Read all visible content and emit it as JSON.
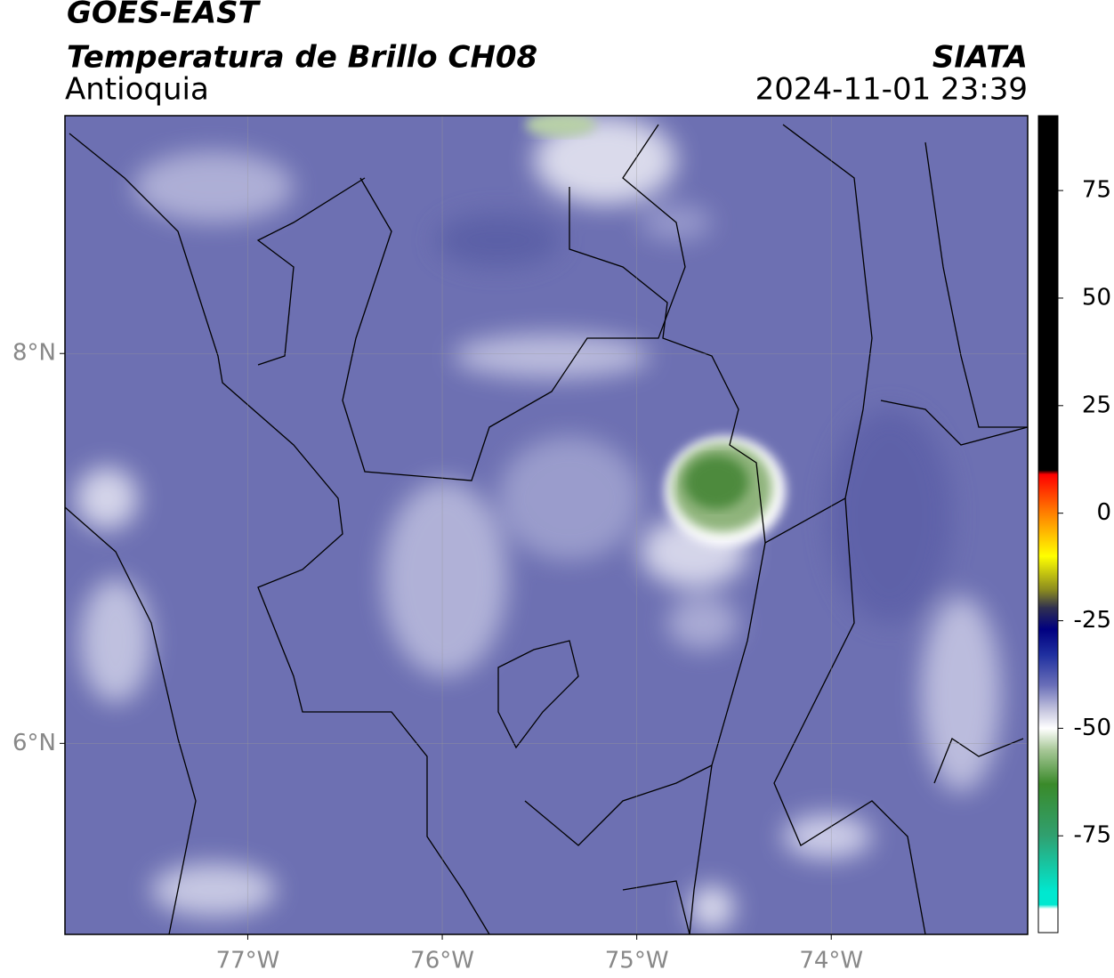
{
  "header": {
    "title": "GOES-EAST",
    "subtitle": "Temperatura de Brillo CH08",
    "source": "SIATA",
    "region": "Antioquia",
    "datetime": "2024-11-01 23:39"
  },
  "map": {
    "lon_range": [
      -77.94,
      -72.99
    ],
    "lat_range": [
      5.02,
      9.22
    ],
    "lon_ticks": [
      {
        "value": -77,
        "label": "77°W"
      },
      {
        "value": -76,
        "label": "76°W"
      },
      {
        "value": -75,
        "label": "75°W"
      },
      {
        "value": -74,
        "label": "74°W"
      }
    ],
    "lat_ticks": [
      {
        "value": 8,
        "label": "8°N"
      },
      {
        "value": 6,
        "label": "6°N"
      }
    ]
  },
  "colorbar": {
    "range": [
      -97.5,
      92.4
    ],
    "ticks": [
      75,
      50,
      25,
      0,
      -25,
      -50,
      -75
    ],
    "stops": [
      [
        92.4,
        "#000000"
      ],
      [
        10,
        "#000000"
      ],
      [
        9,
        "#ff0000"
      ],
      [
        0,
        "#ff8000"
      ],
      [
        -10,
        "#ffff00"
      ],
      [
        -18,
        "#888820"
      ],
      [
        -22,
        "#303050"
      ],
      [
        -27,
        "#000080"
      ],
      [
        -33,
        "#2030a0"
      ],
      [
        -40,
        "#6a6fb8"
      ],
      [
        -46,
        "#c8c8e0"
      ],
      [
        -50,
        "#ffffff"
      ],
      [
        -55,
        "#a8c898"
      ],
      [
        -63,
        "#3a8a2a"
      ],
      [
        -75,
        "#30a070"
      ],
      [
        -88,
        "#00e8d0"
      ],
      [
        -91,
        "#00e8d0"
      ],
      [
        -92,
        "#ffffff"
      ],
      [
        -97.5,
        "#ffffff"
      ]
    ]
  }
}
